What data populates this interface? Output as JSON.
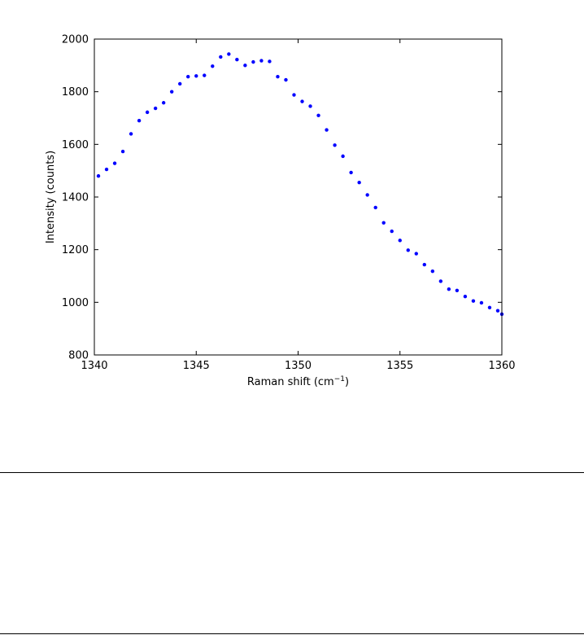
{
  "chart_data": {
    "type": "scatter",
    "title": "",
    "xlabel": "Raman shift (cm",
    "xlabel_sup": "−1",
    "xlabel_end": ")",
    "ylabel": "Intensity (counts)",
    "xlim": [
      1340,
      1360
    ],
    "ylim": [
      800,
      2000
    ],
    "xticks": [
      1340,
      1345,
      1350,
      1355,
      1360
    ],
    "yticks": [
      800,
      1000,
      1200,
      1400,
      1600,
      1800,
      2000
    ],
    "grid": false,
    "marker_color": "#0000ff",
    "series": [
      {
        "x": [
          1340.2,
          1340.6,
          1341.0,
          1341.4,
          1341.8,
          1342.2,
          1342.6,
          1343.0,
          1343.4,
          1343.8,
          1344.2,
          1344.6,
          1345.0,
          1345.4,
          1345.8,
          1346.2,
          1346.6,
          1347.0,
          1347.4,
          1347.8,
          1348.2,
          1348.6,
          1349.0,
          1349.4,
          1349.8,
          1350.2,
          1350.6,
          1351.0,
          1351.4,
          1351.8,
          1352.2,
          1352.6,
          1353.0,
          1353.4,
          1353.8,
          1354.2,
          1354.6,
          1355.0,
          1355.4,
          1355.8,
          1356.2,
          1356.6,
          1357.0,
          1357.4,
          1357.8,
          1358.2,
          1358.6,
          1359.0,
          1359.4,
          1359.8,
          1360.0
        ],
        "y": [
          1480,
          1505,
          1528,
          1573,
          1640,
          1690,
          1722,
          1737,
          1758,
          1800,
          1830,
          1857,
          1860,
          1862,
          1897,
          1932,
          1943,
          1922,
          1900,
          1913,
          1918,
          1915,
          1857,
          1845,
          1788,
          1763,
          1745,
          1710,
          1655,
          1597,
          1555,
          1493,
          1455,
          1408,
          1360,
          1302,
          1270,
          1235,
          1198,
          1185,
          1143,
          1118,
          1080,
          1050,
          1045,
          1022,
          1005,
          998,
          980,
          968,
          955
        ]
      }
    ]
  }
}
